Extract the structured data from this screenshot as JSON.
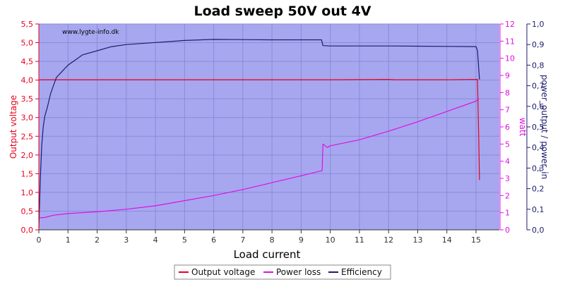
{
  "chart_data": {
    "type": "line",
    "title": "Load sweep 50V out 4V",
    "watermark": "www.lygte-info.dk",
    "xlabel": "Load current",
    "xlim": [
      0,
      15.8
    ],
    "x_ticks": [
      0,
      1,
      2,
      3,
      4,
      5,
      6,
      7,
      8,
      9,
      10,
      11,
      12,
      13,
      14,
      15
    ],
    "grid": true,
    "background_color": "#a7a7f0",
    "axes": {
      "left": {
        "label": "Output voltage",
        "color": "#e8001c",
        "ylim": [
          0,
          5.5
        ],
        "ticks": [
          "0,0",
          "0,5",
          "1,0",
          "1,5",
          "2,0",
          "2,5",
          "3,0",
          "3,5",
          "4,0",
          "4,5",
          "5,0",
          "5,5"
        ],
        "tick_values": [
          0,
          0.5,
          1,
          1.5,
          2,
          2.5,
          3,
          3.5,
          4,
          4.5,
          5,
          5.5
        ]
      },
      "right1": {
        "label": "watt",
        "color": "#e010e0",
        "ylim": [
          0,
          12
        ],
        "ticks": [
          "0",
          "1",
          "2",
          "3",
          "4",
          "5",
          "6",
          "7",
          "8",
          "9",
          "10",
          "11",
          "12"
        ],
        "tick_values": [
          0,
          1,
          2,
          3,
          4,
          5,
          6,
          7,
          8,
          9,
          10,
          11,
          12
        ]
      },
      "right2": {
        "label": "power_output / power_in",
        "color": "#1c1c6c",
        "ylim": [
          0,
          1
        ],
        "ticks": [
          "0,0",
          "0,1",
          "0,2",
          "0,3",
          "0,4",
          "0,5",
          "0,6",
          "0,7",
          "0,8",
          "0,9",
          "1,0"
        ],
        "tick_values": [
          0,
          0.1,
          0.2,
          0.3,
          0.4,
          0.5,
          0.6,
          0.7,
          0.8,
          0.9,
          1.0
        ]
      }
    },
    "series": [
      {
        "name": "Output voltage",
        "axis": "left",
        "color": "#e8001c",
        "x": [
          0,
          0.05,
          0.5,
          2,
          4,
          6,
          8,
          10,
          12,
          12.2,
          14,
          15.05,
          15.1,
          15.12
        ],
        "y": [
          4.0,
          4.01,
          4.01,
          4.01,
          4.01,
          4.01,
          4.01,
          4.01,
          4.02,
          4.01,
          4.01,
          4.02,
          2.2,
          1.33
        ]
      },
      {
        "name": "Power loss",
        "axis": "right1",
        "color": "#e010e0",
        "x": [
          0,
          0.2,
          0.5,
          1,
          2,
          3,
          4,
          5,
          6,
          7,
          8,
          9,
          9.72,
          9.75,
          9.9,
          10,
          11,
          12,
          13,
          14,
          15,
          15.1
        ],
        "y": [
          0.7,
          0.72,
          0.85,
          0.95,
          1.05,
          1.2,
          1.4,
          1.7,
          2.0,
          2.35,
          2.75,
          3.15,
          3.45,
          5.0,
          4.8,
          4.9,
          5.25,
          5.75,
          6.3,
          6.9,
          7.5,
          7.65
        ]
      },
      {
        "name": "Efficiency",
        "axis": "right2",
        "color": "#1c1c6c",
        "x": [
          0,
          0.05,
          0.1,
          0.15,
          0.2,
          0.3,
          0.4,
          0.5,
          0.6,
          0.8,
          1,
          1.2,
          1.5,
          2,
          2.5,
          3,
          4,
          5,
          6,
          7,
          8,
          9,
          9.7,
          9.73,
          9.75,
          10,
          11,
          12,
          13,
          14,
          15,
          15.05,
          15.12
        ],
        "y": [
          0.01,
          0.25,
          0.41,
          0.5,
          0.55,
          0.6,
          0.66,
          0.7,
          0.74,
          0.77,
          0.8,
          0.82,
          0.85,
          0.87,
          0.89,
          0.9,
          0.91,
          0.92,
          0.925,
          0.924,
          0.923,
          0.923,
          0.923,
          0.905,
          0.895,
          0.893,
          0.893,
          0.893,
          0.892,
          0.891,
          0.89,
          0.87,
          0.73
        ]
      }
    ],
    "legend": {
      "position": "bottom-center",
      "items": [
        "Output voltage",
        "Power loss",
        "Efficiency"
      ]
    }
  }
}
